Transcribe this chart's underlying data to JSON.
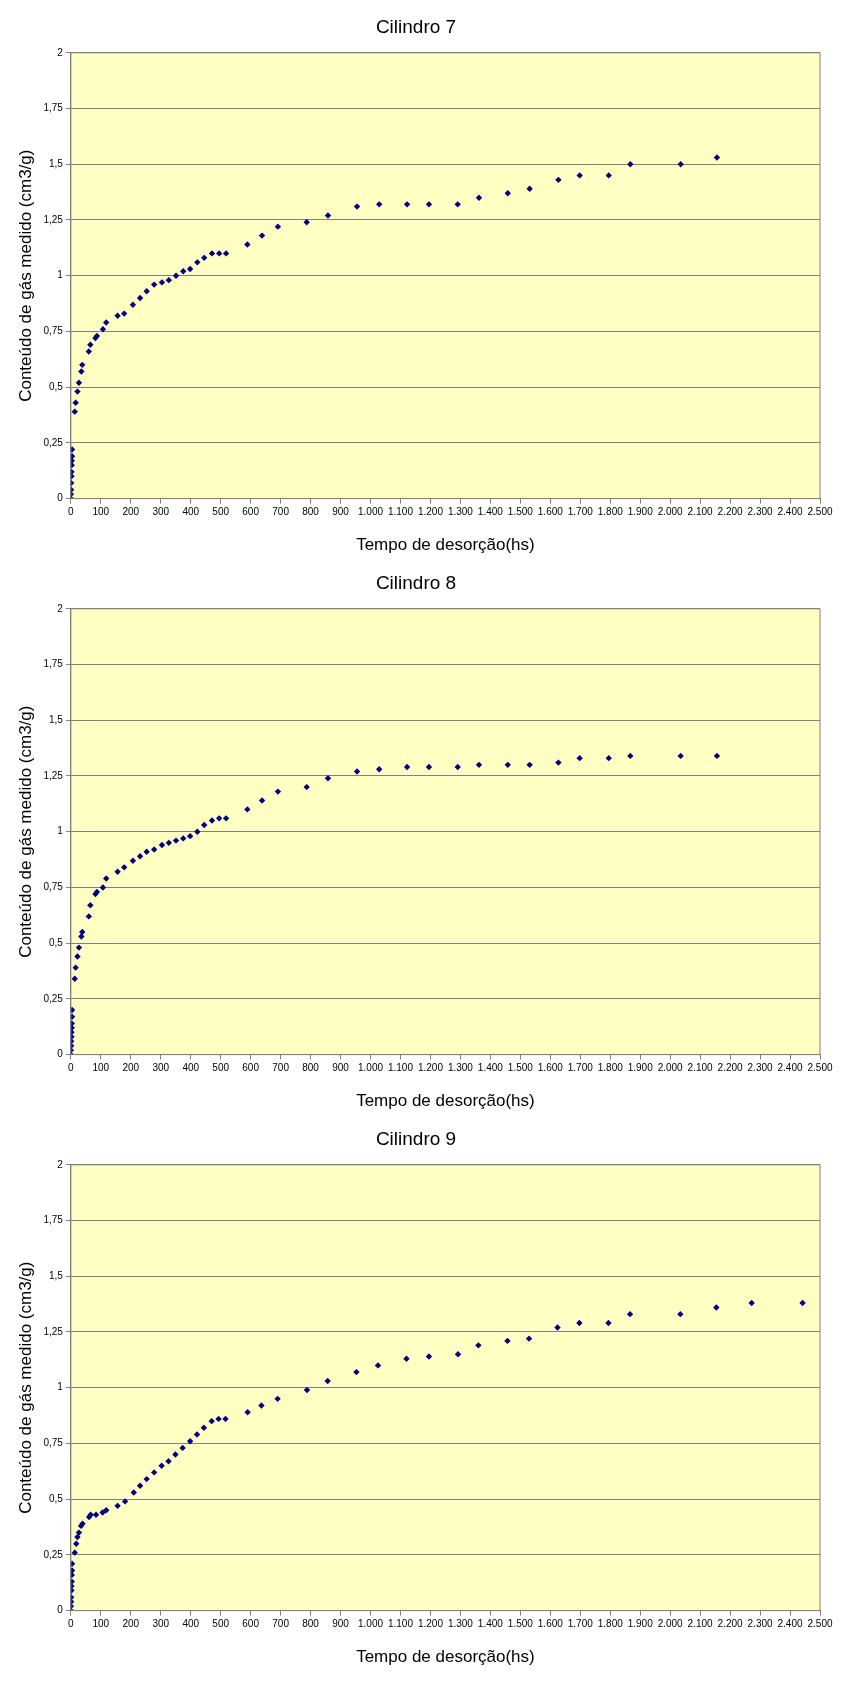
{
  "chart_data": [
    {
      "type": "scatter",
      "title": "Cilindro 7",
      "xlabel": "Tempo de desorção(hs)",
      "ylabel": "Conteúdo de gás medido (cm3/g)",
      "marker": "diamond",
      "grid": "y",
      "xlim": [
        0,
        2500
      ],
      "ylim": [
        0,
        2
      ],
      "xticks": [
        0,
        100,
        200,
        300,
        400,
        500,
        600,
        700,
        800,
        900,
        {
          "value": 1000,
          "label": "1.000"
        },
        {
          "value": 1100,
          "label": "1.100"
        },
        {
          "value": 1200,
          "label": "1.200"
        },
        {
          "value": 1300,
          "label": "1.300"
        },
        {
          "value": 1400,
          "label": "1.400"
        },
        {
          "value": 1500,
          "label": "1.500"
        },
        {
          "value": 1600,
          "label": "1.600"
        },
        {
          "value": 1700,
          "label": "1.700"
        },
        {
          "value": 1800,
          "label": "1.800"
        },
        {
          "value": 1900,
          "label": "1.900"
        },
        {
          "value": 2000,
          "label": "2.000"
        },
        {
          "value": 2100,
          "label": "2.100"
        },
        {
          "value": 2200,
          "label": "2.200"
        },
        {
          "value": 2300,
          "label": "2.300"
        },
        {
          "value": 2400,
          "label": "2.400"
        },
        {
          "value": 2500,
          "label": "2.500"
        }
      ],
      "yticks": [
        0,
        {
          "value": 0.25,
          "label": "0,25"
        },
        {
          "value": 0.5,
          "label": "0,5"
        },
        {
          "value": 0.75,
          "label": "0,75"
        },
        1,
        {
          "value": 1.25,
          "label": "1,25"
        },
        {
          "value": 1.5,
          "label": "1,5"
        },
        {
          "value": 1.75,
          "label": "1,75"
        },
        2
      ],
      "series": [
        {
          "color": "#000080",
          "x": [
            0,
            0,
            1,
            1,
            2,
            2,
            3,
            3,
            4,
            4,
            13,
            16,
            22,
            27,
            35,
            38,
            60,
            65,
            82,
            87,
            107,
            118,
            156,
            178,
            207,
            231,
            253,
            278,
            304,
            327,
            351,
            375,
            398,
            422,
            445,
            471,
            495,
            518,
            589,
            638,
            691,
            787,
            858,
            955,
            1029,
            1122,
            1195,
            1291,
            1362,
            1458,
            1531,
            1627,
            1698,
            1795,
            1867,
            2035,
            2156
          ],
          "values": [
            0,
            0.02,
            0.04,
            0.07,
            0.1,
            0.12,
            0.15,
            0.17,
            0.19,
            0.22,
            0.39,
            0.43,
            0.48,
            0.52,
            0.57,
            0.6,
            0.66,
            0.69,
            0.72,
            0.73,
            0.76,
            0.79,
            0.82,
            0.83,
            0.87,
            0.9,
            0.93,
            0.96,
            0.97,
            0.98,
            1.0,
            1.02,
            1.03,
            1.06,
            1.08,
            1.1,
            1.1,
            1.1,
            1.14,
            1.18,
            1.22,
            1.24,
            1.27,
            1.31,
            1.32,
            1.32,
            1.32,
            1.32,
            1.35,
            1.37,
            1.39,
            1.43,
            1.45,
            1.45,
            1.5,
            1.5,
            1.53
          ]
        }
      ]
    },
    {
      "type": "scatter",
      "title": "Cilindro 8",
      "xlabel": "Tempo de desorção(hs)",
      "ylabel": "Conteúdo de gás medido (cm3/g)",
      "marker": "diamond",
      "grid": "y",
      "xlim": [
        0,
        2500
      ],
      "ylim": [
        0,
        2
      ],
      "xticks": [
        0,
        100,
        200,
        300,
        400,
        500,
        600,
        700,
        800,
        900,
        {
          "value": 1000,
          "label": "1.000"
        },
        {
          "value": 1100,
          "label": "1.100"
        },
        {
          "value": 1200,
          "label": "1.200"
        },
        {
          "value": 1300,
          "label": "1.300"
        },
        {
          "value": 1400,
          "label": "1.400"
        },
        {
          "value": 1500,
          "label": "1.500"
        },
        {
          "value": 1600,
          "label": "1.600"
        },
        {
          "value": 1700,
          "label": "1.700"
        },
        {
          "value": 1800,
          "label": "1.800"
        },
        {
          "value": 1900,
          "label": "1.900"
        },
        {
          "value": 2000,
          "label": "2.000"
        },
        {
          "value": 2100,
          "label": "2.100"
        },
        {
          "value": 2200,
          "label": "2.200"
        },
        {
          "value": 2300,
          "label": "2.300"
        },
        {
          "value": 2400,
          "label": "2.400"
        },
        {
          "value": 2500,
          "label": "2.500"
        }
      ],
      "yticks": [
        0,
        {
          "value": 0.25,
          "label": "0,25"
        },
        {
          "value": 0.5,
          "label": "0,5"
        },
        {
          "value": 0.75,
          "label": "0,75"
        },
        1,
        {
          "value": 1.25,
          "label": "1,25"
        },
        {
          "value": 1.5,
          "label": "1,5"
        },
        {
          "value": 1.75,
          "label": "1,75"
        },
        2
      ],
      "series": [
        {
          "color": "#000080",
          "x": [
            0,
            0,
            1,
            1,
            2,
            2,
            3,
            3,
            4,
            4,
            13,
            16,
            22,
            27,
            35,
            38,
            60,
            65,
            82,
            87,
            107,
            118,
            156,
            178,
            207,
            231,
            253,
            278,
            304,
            327,
            351,
            375,
            398,
            422,
            445,
            471,
            495,
            518,
            589,
            638,
            691,
            787,
            858,
            955,
            1029,
            1122,
            1195,
            1291,
            1362,
            1458,
            1531,
            1627,
            1698,
            1795,
            1867,
            2035,
            2156
          ],
          "values": [
            0,
            0.02,
            0.04,
            0.06,
            0.08,
            0.1,
            0.12,
            0.14,
            0.17,
            0.2,
            0.34,
            0.39,
            0.44,
            0.48,
            0.53,
            0.55,
            0.62,
            0.67,
            0.72,
            0.73,
            0.75,
            0.79,
            0.82,
            0.84,
            0.87,
            0.89,
            0.91,
            0.92,
            0.94,
            0.95,
            0.96,
            0.97,
            0.98,
            1.0,
            1.03,
            1.05,
            1.06,
            1.06,
            1.1,
            1.14,
            1.18,
            1.2,
            1.24,
            1.27,
            1.28,
            1.29,
            1.29,
            1.29,
            1.3,
            1.3,
            1.3,
            1.31,
            1.33,
            1.33,
            1.34,
            1.34,
            1.34
          ]
        }
      ]
    },
    {
      "type": "scatter",
      "title": "Cilindro 9",
      "xlabel": "Tempo de desorção(hs)",
      "ylabel": "Conteúdo de gás medido (cm3/g)",
      "marker": "diamond",
      "grid": "y",
      "xlim": [
        0,
        2500
      ],
      "ylim": [
        0,
        2
      ],
      "xticks": [
        0,
        100,
        200,
        300,
        400,
        500,
        600,
        700,
        800,
        900,
        {
          "value": 1000,
          "label": "1.000"
        },
        {
          "value": 1100,
          "label": "1.100"
        },
        {
          "value": 1200,
          "label": "1.200"
        },
        {
          "value": 1300,
          "label": "1.300"
        },
        {
          "value": 1400,
          "label": "1.400"
        },
        {
          "value": 1500,
          "label": "1.500"
        },
        {
          "value": 1600,
          "label": "1.600"
        },
        {
          "value": 1700,
          "label": "1.700"
        },
        {
          "value": 1800,
          "label": "1.800"
        },
        {
          "value": 1900,
          "label": "1.900"
        },
        {
          "value": 2000,
          "label": "2.000"
        },
        {
          "value": 2100,
          "label": "2.100"
        },
        {
          "value": 2200,
          "label": "2.200"
        },
        {
          "value": 2300,
          "label": "2.300"
        },
        {
          "value": 2400,
          "label": "2.400"
        },
        {
          "value": 2500,
          "label": "2.500"
        }
      ],
      "yticks": [
        0,
        {
          "value": 0.25,
          "label": "0,25"
        },
        {
          "value": 0.5,
          "label": "0,5"
        },
        {
          "value": 0.75,
          "label": "0,75"
        },
        1,
        {
          "value": 1.25,
          "label": "1,25"
        },
        {
          "value": 1.5,
          "label": "1,5"
        },
        {
          "value": 1.75,
          "label": "1,75"
        },
        2
      ],
      "series": [
        {
          "color": "#000080",
          "x": [
            0,
            0,
            1,
            1,
            2,
            2,
            3,
            3,
            4,
            4,
            13,
            18,
            22,
            27,
            34,
            39,
            61,
            66,
            84,
            106,
            118,
            156,
            181,
            210,
            231,
            253,
            278,
            303,
            326,
            349,
            373,
            398,
            421,
            444,
            470,
            493,
            516,
            590,
            636,
            690,
            788,
            857,
            953,
            1025,
            1120,
            1195,
            1292,
            1360,
            1457,
            1529,
            1624,
            1697,
            1794,
            1866,
            2034,
            2154,
            2272,
            2442
          ],
          "values": [
            0,
            0.02,
            0.04,
            0.06,
            0.09,
            0.11,
            0.13,
            0.16,
            0.18,
            0.21,
            0.26,
            0.3,
            0.33,
            0.35,
            0.38,
            0.39,
            0.42,
            0.43,
            0.43,
            0.44,
            0.45,
            0.47,
            0.49,
            0.53,
            0.56,
            0.59,
            0.62,
            0.65,
            0.67,
            0.7,
            0.73,
            0.76,
            0.79,
            0.82,
            0.85,
            0.86,
            0.86,
            0.89,
            0.92,
            0.95,
            0.99,
            1.03,
            1.07,
            1.1,
            1.13,
            1.14,
            1.15,
            1.19,
            1.21,
            1.22,
            1.27,
            1.29,
            1.29,
            1.33,
            1.33,
            1.36,
            1.38,
            1.38
          ]
        }
      ]
    }
  ]
}
